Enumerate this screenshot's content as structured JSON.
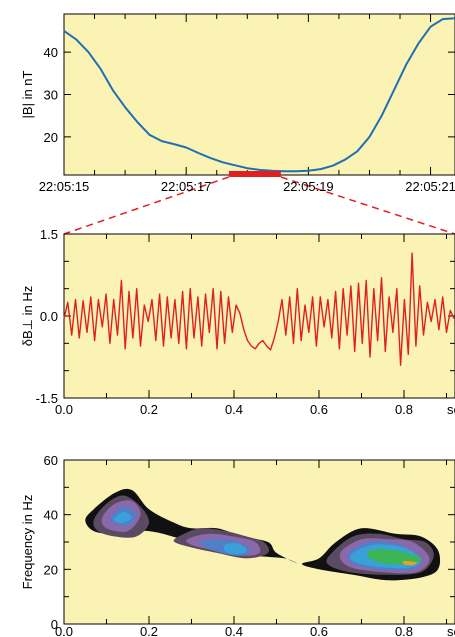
{
  "colors": {
    "background": "#fbf3b4",
    "field_line": "#1f6fb4",
    "wave_line": "#e02020",
    "zoom_marker": "#e02020"
  },
  "chart_data": [
    {
      "id": "panel1",
      "type": "line",
      "ylabel": "|B| in nT",
      "x_tick_labels": [
        "22:05:15",
        "22:05:17",
        "22:05:19",
        "22:05:21"
      ],
      "x_ticks_sec": [
        15,
        17,
        19,
        21
      ],
      "xlim_sec": [
        15,
        21.4
      ],
      "y_ticks": [
        20,
        30,
        40
      ],
      "ylim": [
        11,
        49
      ],
      "series": [
        {
          "x_sec": [
            15.0,
            15.2,
            15.4,
            15.6,
            15.8,
            16.0,
            16.2,
            16.4,
            16.6,
            16.8,
            17.0,
            17.2,
            17.4,
            17.6,
            17.8,
            18.0,
            18.2,
            18.4,
            18.6,
            18.8,
            19.0,
            19.2,
            19.4,
            19.6,
            19.8,
            20.0,
            20.2,
            20.4,
            20.6,
            20.8,
            21.0,
            21.2,
            21.4
          ],
          "y": [
            45,
            43,
            40,
            36,
            31,
            27,
            23.5,
            20.5,
            19,
            18.3,
            17.5,
            16.2,
            15,
            14,
            13.3,
            12.6,
            12.2,
            12.0,
            11.9,
            11.9,
            12.0,
            12.4,
            13.2,
            14.6,
            16.6,
            20,
            25,
            31,
            37,
            42,
            46,
            47.8,
            48
          ]
        }
      ],
      "zoom_interval_sec": [
        17.7,
        18.55
      ]
    },
    {
      "id": "panel2",
      "type": "line",
      "ylabel": "δB⊥ in Hz",
      "x_tick_labels": [
        "0.0",
        "0.2",
        "0.4",
        "0.6",
        "0.8",
        "sec"
      ],
      "x_ticks": [
        0.0,
        0.2,
        0.4,
        0.6,
        0.8
      ],
      "xlim": [
        0,
        0.92
      ],
      "y_tick_labels": [
        "1.5",
        "0.0",
        "-1.5"
      ],
      "y_ticks": [
        1.5,
        0.0,
        -1.5
      ],
      "ylim": [
        -1.5,
        1.5
      ],
      "series": [
        {
          "x": [
            0.0,
            0.009,
            0.018,
            0.027,
            0.036,
            0.045,
            0.054,
            0.063,
            0.072,
            0.081,
            0.09,
            0.099,
            0.108,
            0.117,
            0.126,
            0.135,
            0.144,
            0.153,
            0.162,
            0.171,
            0.18,
            0.189,
            0.198,
            0.207,
            0.216,
            0.225,
            0.234,
            0.243,
            0.252,
            0.261,
            0.27,
            0.279,
            0.288,
            0.297,
            0.306,
            0.315,
            0.324,
            0.333,
            0.342,
            0.351,
            0.36,
            0.369,
            0.378,
            0.387,
            0.396,
            0.405,
            0.414,
            0.423,
            0.432,
            0.441,
            0.45,
            0.459,
            0.468,
            0.477,
            0.486,
            0.495,
            0.504,
            0.513,
            0.522,
            0.531,
            0.54,
            0.549,
            0.558,
            0.567,
            0.576,
            0.585,
            0.594,
            0.603,
            0.612,
            0.621,
            0.63,
            0.639,
            0.648,
            0.657,
            0.666,
            0.675,
            0.684,
            0.693,
            0.702,
            0.711,
            0.72,
            0.729,
            0.738,
            0.747,
            0.756,
            0.765,
            0.774,
            0.783,
            0.792,
            0.801,
            0.81,
            0.819,
            0.828,
            0.837,
            0.846,
            0.855,
            0.864,
            0.873,
            0.882,
            0.891,
            0.9,
            0.909,
            0.918
          ],
          "y": [
            -0.05,
            0.25,
            -0.35,
            0.3,
            -0.4,
            0.28,
            -0.3,
            0.35,
            -0.45,
            0.3,
            -0.2,
            0.4,
            -0.5,
            0.3,
            -0.35,
            0.65,
            -0.6,
            0.45,
            -0.4,
            0.5,
            -0.55,
            0.2,
            -0.1,
            0.3,
            -0.45,
            0.4,
            -0.55,
            0.35,
            -0.4,
            0.3,
            -0.5,
            0.45,
            -0.6,
            0.5,
            -0.4,
            0.35,
            -0.55,
            0.4,
            -0.3,
            0.5,
            -0.6,
            0.45,
            -0.5,
            0.35,
            -0.3,
            0.2,
            0.05,
            -0.25,
            -0.45,
            -0.55,
            -0.6,
            -0.5,
            -0.45,
            -0.55,
            -0.62,
            -0.4,
            -0.1,
            0.3,
            -0.35,
            0.35,
            -0.5,
            0.5,
            -0.45,
            0.2,
            -0.3,
            0.35,
            -0.55,
            0.35,
            -0.2,
            0.3,
            -0.4,
            0.45,
            -0.6,
            0.5,
            -0.35,
            0.55,
            -0.65,
            0.6,
            -0.5,
            0.65,
            -0.75,
            0.5,
            -0.45,
            0.7,
            -0.65,
            0.35,
            -0.3,
            0.5,
            -0.9,
            0.3,
            -0.7,
            1.15,
            -0.55,
            0.55,
            -0.35,
            0.25,
            -0.1,
            0.3,
            -0.25,
            0.35,
            -0.3,
            0.1,
            -0.05
          ]
        }
      ]
    },
    {
      "id": "panel3",
      "type": "heatmap",
      "ylabel": "Frequency in Hz",
      "x_tick_labels": [
        "0.0",
        "0.2",
        "0.4",
        "0.6",
        "0.8",
        "sec"
      ],
      "x_ticks": [
        0.0,
        0.2,
        0.4,
        0.6,
        0.8
      ],
      "xlim": [
        0,
        0.92
      ],
      "y_tick_labels": [
        "0",
        "20",
        "40",
        "60"
      ],
      "y_ticks": [
        0,
        20,
        40,
        60
      ],
      "ylim": [
        0,
        60
      ],
      "levels": [
        {
          "color": "#111111",
          "blobs": [
            {
              "x": [
                0.05,
                0.07,
                0.12,
                0.16,
                0.2,
                0.26,
                0.3,
                0.36,
                0.42,
                0.48,
                0.5,
                0.55,
                0.52,
                0.45,
                0.38,
                0.3,
                0.2,
                0.12,
                0.07
              ],
              "y": [
                38,
                42,
                48,
                49,
                42,
                37,
                35,
                35,
                32,
                30,
                26,
                22,
                24,
                25,
                27,
                30,
                34,
                33,
                34
              ]
            },
            {
              "x": [
                0.6,
                0.64,
                0.7,
                0.78,
                0.84,
                0.88,
                0.88,
                0.84,
                0.76,
                0.68,
                0.6,
                0.56
              ],
              "y": [
                24,
                30,
                35,
                33,
                32,
                27,
                20,
                17,
                16,
                18,
                20,
                22
              ]
            }
          ]
        },
        {
          "color": "#5a4a62",
          "blobs": [
            {
              "x": [
                0.07,
                0.1,
                0.14,
                0.18,
                0.2,
                0.17,
                0.12,
                0.08
              ],
              "y": [
                38,
                44,
                47,
                43,
                37,
                32,
                32,
                34
              ]
            },
            {
              "x": [
                0.27,
                0.32,
                0.38,
                0.43,
                0.47,
                0.48,
                0.43,
                0.36,
                0.3,
                0.26
              ],
              "y": [
                32,
                35,
                34,
                32,
                30,
                26,
                24,
                26,
                28,
                30
              ]
            },
            {
              "x": [
                0.63,
                0.68,
                0.74,
                0.8,
                0.85,
                0.87,
                0.84,
                0.76,
                0.67,
                0.62
              ],
              "y": [
                26,
                32,
                33,
                31,
                30,
                25,
                19,
                18,
                19,
                22
              ]
            }
          ]
        },
        {
          "color": "#8a68aa",
          "blobs": [
            {
              "x": [
                0.09,
                0.12,
                0.16,
                0.18,
                0.15,
                0.1
              ],
              "y": [
                39,
                44,
                45,
                40,
                34,
                35
              ]
            },
            {
              "x": [
                0.29,
                0.34,
                0.4,
                0.45,
                0.46,
                0.42,
                0.35,
                0.3
              ],
              "y": [
                31,
                33,
                32,
                30,
                26,
                25,
                27,
                29
              ]
            },
            {
              "x": [
                0.65,
                0.7,
                0.76,
                0.82,
                0.86,
                0.83,
                0.75,
                0.67
              ],
              "y": [
                26,
                31,
                31,
                30,
                24,
                19,
                19,
                21
              ]
            }
          ]
        },
        {
          "color": "#4f7fc7",
          "blobs": [
            {
              "x": [
                0.11,
                0.14,
                0.17,
                0.15,
                0.12
              ],
              "y": [
                39,
                43,
                40,
                36,
                37
              ]
            },
            {
              "x": [
                0.32,
                0.37,
                0.41,
                0.44,
                0.41,
                0.35
              ],
              "y": [
                30,
                31,
                30,
                27,
                25,
                27
              ]
            },
            {
              "x": [
                0.67,
                0.72,
                0.79,
                0.84,
                0.82,
                0.74,
                0.68
              ],
              "y": [
                26,
                30,
                29,
                24,
                20,
                20,
                22
              ]
            }
          ]
        },
        {
          "color": "#3aa0d8",
          "blobs": [
            {
              "x": [
                0.12,
                0.14,
                0.16,
                0.14,
                0.12
              ],
              "y": [
                39,
                41,
                39,
                37,
                37.5
              ]
            },
            {
              "x": [
                0.38,
                0.41,
                0.43,
                0.41,
                0.38
              ],
              "y": [
                29,
                29.5,
                27,
                25.5,
                26.5
              ]
            },
            {
              "x": [
                0.68,
                0.73,
                0.8,
                0.84,
                0.81,
                0.73,
                0.68
              ],
              "y": [
                26,
                29,
                28,
                23.5,
                20.5,
                21,
                23
              ]
            }
          ]
        },
        {
          "color": "#3cb556",
          "blobs": [
            {
              "x": [
                0.72,
                0.78,
                0.84,
                0.82,
                0.76,
                0.72
              ],
              "y": [
                27,
                27,
                24,
                22,
                22,
                24
              ]
            }
          ]
        },
        {
          "color": "#e8a020",
          "blobs": [
            {
              "x": [
                0.8,
                0.83,
                0.82,
                0.8
              ],
              "y": [
                23,
                22.5,
                21.5,
                21.8
              ]
            }
          ]
        }
      ]
    }
  ]
}
